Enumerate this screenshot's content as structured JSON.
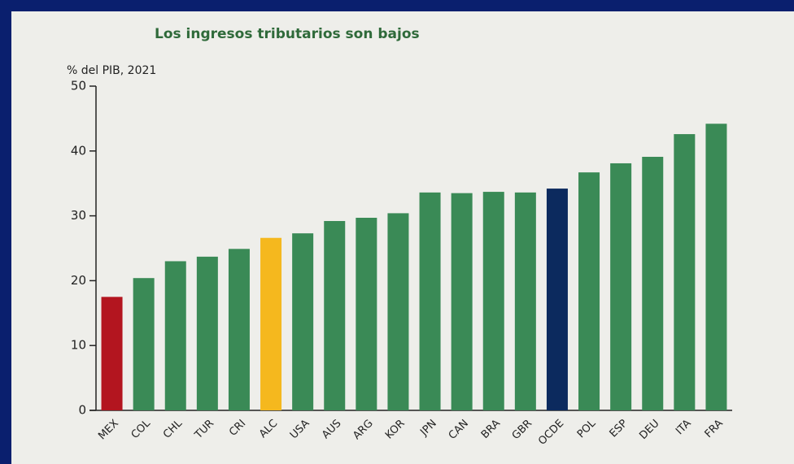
{
  "chart_data": {
    "type": "bar",
    "title": "Los ingresos tributarios son bajos",
    "y_label": "% del PIB, 2021",
    "categories": [
      "MEX",
      "COL",
      "CHL",
      "TUR",
      "CRI",
      "ALC",
      "USA",
      "AUS",
      "ARG",
      "KOR",
      "JPN",
      "CAN",
      "BRA",
      "GBR",
      "OCDE",
      "POL",
      "ESP",
      "DEU",
      "ITA",
      "FRA"
    ],
    "values": [
      17.5,
      20.4,
      23.0,
      23.7,
      24.9,
      26.6,
      27.3,
      29.2,
      29.7,
      30.4,
      33.6,
      33.5,
      33.7,
      33.6,
      34.2,
      36.7,
      38.1,
      39.1,
      42.6,
      44.2
    ],
    "colors": [
      "#b3151f",
      "#3a8a56",
      "#3a8a56",
      "#3a8a56",
      "#3a8a56",
      "#f5b81e",
      "#3a8a56",
      "#3a8a56",
      "#3a8a56",
      "#3a8a56",
      "#3a8a56",
      "#3a8a56",
      "#3a8a56",
      "#3a8a56",
      "#0c2a5e",
      "#3a8a56",
      "#3a8a56",
      "#3a8a56",
      "#3a8a56",
      "#3a8a56"
    ],
    "ylim": [
      0,
      50
    ],
    "yticks": [
      0,
      10,
      20,
      30,
      40,
      50
    ],
    "grid": false
  }
}
